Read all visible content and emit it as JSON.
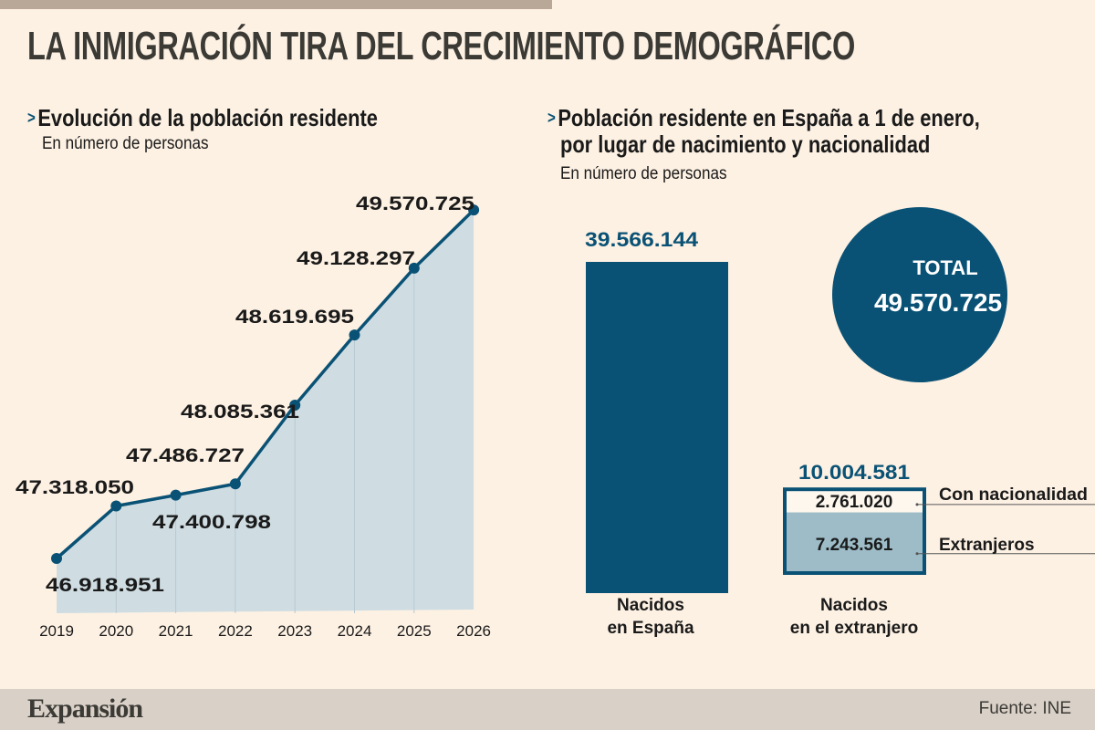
{
  "title": "LA INMIGRACIÓN TIRA DEL CRECIMIENTO DEMOGRÁFICO",
  "colors": {
    "primary": "#0a5275",
    "area": "#cfdde3",
    "light_bar": "#9dbcc8",
    "background": "#fdf1e3"
  },
  "chart_data": [
    {
      "type": "line",
      "title": "Evolución de la población residente",
      "subtitle": "En número de personas",
      "categories": [
        "2019",
        "2020",
        "2021",
        "2022",
        "2023",
        "2024",
        "2025",
        "2026"
      ],
      "values": [
        46918951,
        47318050,
        47400798,
        47486727,
        48085361,
        48619695,
        49128297,
        49570725
      ],
      "labels": [
        "46.918.951",
        "47.318.050",
        "47.400.798",
        "47.486.727",
        "48.085.361",
        "48.619.695",
        "49.128.297",
        "49.570.725"
      ],
      "area_fill": true,
      "grid": "vertical"
    },
    {
      "type": "bar",
      "title": "Población residente en España a 1 de enero,",
      "title_line2": "por lugar de nacimiento y nacionalidad",
      "subtitle": "En número de personas",
      "categories": [
        "Nacidos en España",
        "Nacidos en el extranjero"
      ],
      "category_lines": [
        [
          "Nacidos",
          "en España"
        ],
        [
          "Nacidos",
          "en el extranjero"
        ]
      ],
      "values": [
        39566144,
        10004581
      ],
      "labels": [
        "39.566.144",
        "10.004.581"
      ],
      "stack_extranjero": [
        {
          "name": "Con nacionalidad",
          "value": 2761020,
          "label": "2.761.020"
        },
        {
          "name": "Extranjeros",
          "value": 7243561,
          "label": "7.243.561"
        }
      ],
      "total": {
        "label": "TOTAL",
        "value": 49570725,
        "value_label": "49.570.725"
      }
    }
  ],
  "footer": {
    "logo": "Expansión",
    "source": "Fuente: INE"
  }
}
